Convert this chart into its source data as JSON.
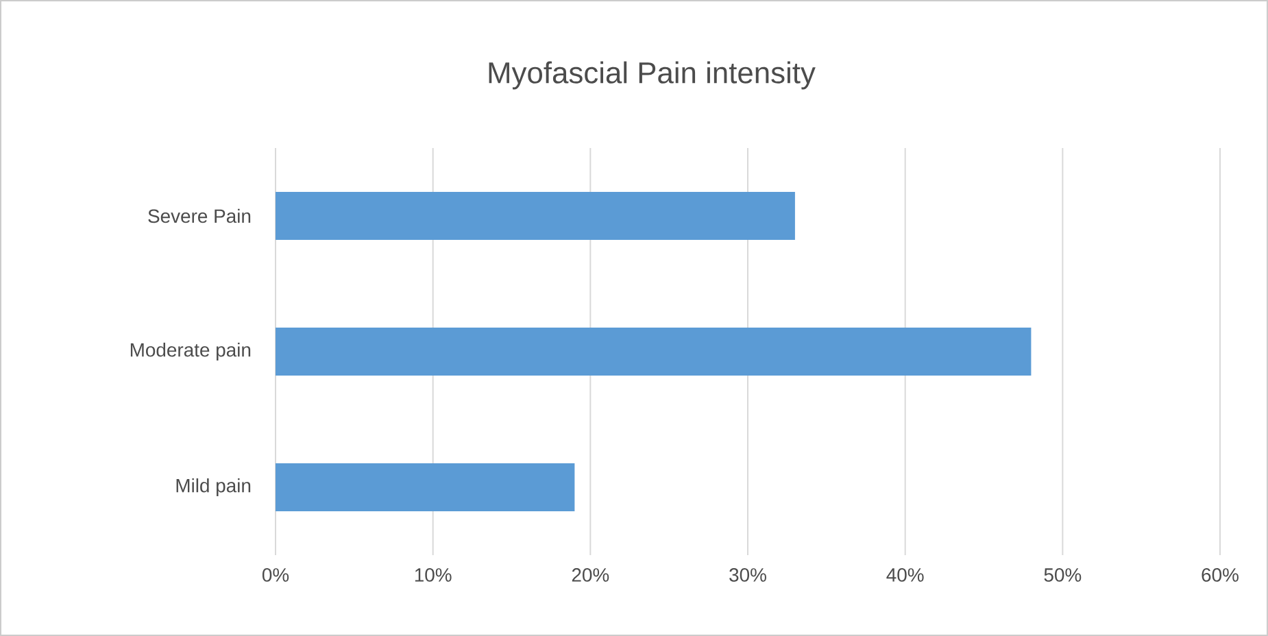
{
  "chart_data": {
    "type": "bar",
    "orientation": "horizontal",
    "title": "Myofascial Pain intensity",
    "categories": [
      "Severe Pain",
      "Moderate pain",
      "Mild pain"
    ],
    "values": [
      33,
      48,
      19
    ],
    "color": "#5b9bd5",
    "xlim": [
      0,
      60
    ],
    "xticks": [
      {
        "value": 0,
        "label": "0%"
      },
      {
        "value": 10,
        "label": "10%"
      },
      {
        "value": 20,
        "label": "20%"
      },
      {
        "value": 30,
        "label": "30%"
      },
      {
        "value": 40,
        "label": "40%"
      },
      {
        "value": 50,
        "label": "50%"
      },
      {
        "value": 60,
        "label": "60%"
      }
    ],
    "grid": "x"
  }
}
